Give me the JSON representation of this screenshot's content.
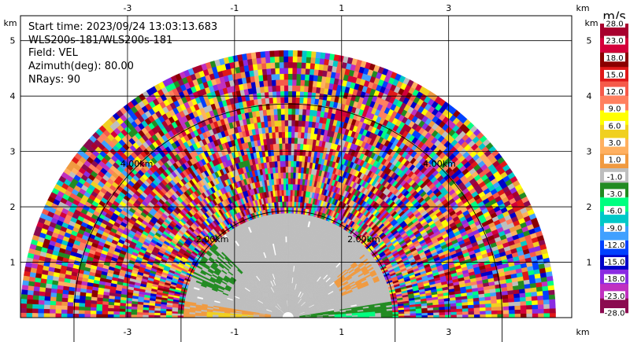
{
  "info": {
    "start_time": "Start time: 2023/09/24 13:03:13.683",
    "station": "WLS200s-181/WLS200s-181",
    "field": "Field: VEL",
    "azimuth": "Azimuth(deg): 80.00",
    "nrays": "NRays: 90"
  },
  "axes": {
    "x_unit": "km",
    "y_unit": "km",
    "xlim": [
      -5.0,
      5.3
    ],
    "ylim": [
      0,
      5.45
    ],
    "x_ticks": [
      "-3",
      "-1",
      "1",
      "3"
    ],
    "x_tick_values": [
      -3,
      -1,
      1,
      3
    ],
    "y_ticks": [
      "1",
      "2",
      "3",
      "4",
      "5"
    ],
    "y_tick_values": [
      1,
      2,
      3,
      4,
      5
    ],
    "grid": true
  },
  "rings": [
    {
      "radius_km": 2.0,
      "label": "2.00km"
    },
    {
      "radius_km": 4.0,
      "label": "4.00km"
    }
  ],
  "colorbar": {
    "unit": "m/s",
    "labels": [
      "28.0",
      "23.0",
      "18.0",
      "15.0",
      "12.0",
      "9.0",
      "6.0",
      "3.0",
      "1.0",
      "-1.0",
      "-3.0",
      "-6.0",
      "-9.0",
      "-12.0",
      "-15.0",
      "-18.0",
      "-23.0",
      "-28.0"
    ],
    "colors": [
      "#a8002e",
      "#d4003a",
      "#8b0000",
      "#e01818",
      "#f55a4a",
      "#ff8060",
      "#ffff00",
      "#f0d020",
      "#ffb060",
      "#f09a40",
      "#bebebe",
      "#228b22",
      "#00ff7f",
      "#00c8c8",
      "#40a0ff",
      "#0040ff",
      "#0000c8",
      "#8a2be2",
      "#c030c0",
      "#8b0a50"
    ]
  },
  "chart_data": {
    "type": "heatmap",
    "projection": "polar-sector",
    "field": "VEL",
    "units": "m/s",
    "azimuth_deg": 80.0,
    "nrays": 90,
    "range_max_km": 5.0,
    "elevation_span_deg": [
      0,
      180
    ],
    "clean_region_max_range_km": 1.95,
    "noise_region_range_km": [
      1.95,
      5.0
    ],
    "features": [
      {
        "value": -3.0,
        "color": "#228b22",
        "description_range_km": [
          0.8,
          2.0
        ],
        "elevation_deg": [
          0,
          8
        ]
      },
      {
        "value": 3.0,
        "color": "#f09a40",
        "description_range_km": [
          0.4,
          2.0
        ],
        "elevation_deg": [
          172,
          180
        ]
      }
    ]
  }
}
